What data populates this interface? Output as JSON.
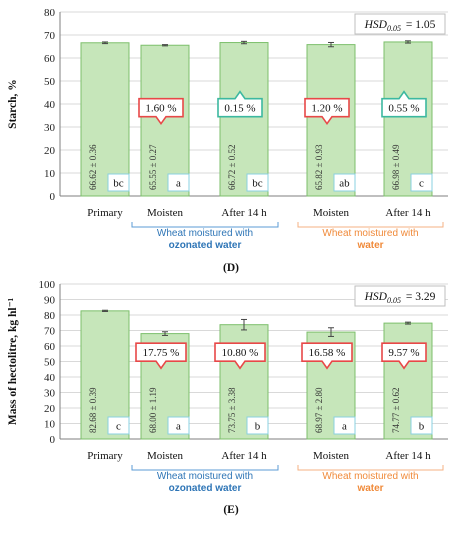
{
  "colors": {
    "bar_fill": "#c6e6ba",
    "bar_stroke": "#7cbf6b",
    "grid": "#d9d9d9",
    "ozonated_bracket": "#5b9bd5",
    "water_bracket": "#f4b183",
    "ozonated_text": "#2e75b6",
    "water_text": "#f08a3a",
    "callout_red": "#e84848",
    "callout_teal": "#3cb8a0",
    "sig_box_border": "#8ad0e0"
  },
  "groups": {
    "ozonated_line1": "Wheat moistured with",
    "ozonated_line2": "ozonated water",
    "water_line1": "Wheat moistured with",
    "water_line2": "water"
  },
  "chart_data": [
    {
      "type": "bar",
      "panel_label": "(D)",
      "ylabel": "Starch, %",
      "ylim": [
        0,
        80
      ],
      "yticks": [
        0,
        10,
        20,
        30,
        40,
        50,
        60,
        70,
        80
      ],
      "grid": true,
      "hsd_label": "HSD",
      "hsd_sub": "0.05",
      "hsd_value": "= 1.05",
      "categories": [
        "Primary",
        "Moisten",
        "After 14 h",
        "Moisten",
        "After 14 h"
      ],
      "values": [
        66.62,
        65.55,
        66.72,
        65.82,
        66.98
      ],
      "errors": [
        0.36,
        0.27,
        0.52,
        0.93,
        0.49
      ],
      "value_labels": [
        "66.62 ± 0.36",
        "65.55 ± 0.27",
        "66.72 ± 0.52",
        "65.82 ± 0.93",
        "66.98 ± 0.49"
      ],
      "significance": [
        "bc",
        "a",
        "bc",
        "ab",
        "c"
      ],
      "changes": [
        {
          "bar": 1,
          "text": "1.60 %",
          "direction": "down",
          "color": "red"
        },
        {
          "bar": 2,
          "text": "0.15 %",
          "direction": "up",
          "color": "teal"
        },
        {
          "bar": 3,
          "text": "1.20 %",
          "direction": "down",
          "color": "red"
        },
        {
          "bar": 4,
          "text": "0.55 %",
          "direction": "up",
          "color": "teal"
        }
      ]
    },
    {
      "type": "bar",
      "panel_label": "(E)",
      "ylabel": "Mass of hectolitre, kg hl⁻¹",
      "ylim": [
        0,
        100
      ],
      "yticks": [
        0,
        10,
        20,
        30,
        40,
        50,
        60,
        70,
        80,
        90,
        100
      ],
      "grid": true,
      "hsd_label": "HSD",
      "hsd_sub": "0.05",
      "hsd_value": "= 3.29",
      "categories": [
        "Primary",
        "Moisten",
        "After 14 h",
        "Moisten",
        "After 14 h"
      ],
      "values": [
        82.68,
        68.0,
        73.75,
        68.97,
        74.77
      ],
      "errors": [
        0.39,
        1.19,
        3.38,
        2.8,
        0.62
      ],
      "value_labels": [
        "82.68 ± 0.39",
        "68.00 ± 1.19",
        "73.75 ± 3.38",
        "68.97 ± 2.80",
        "74.77 ± 0.62"
      ],
      "significance": [
        "c",
        "a",
        "b",
        "a",
        "b"
      ],
      "changes": [
        {
          "bar": 1,
          "text": "17.75 %",
          "direction": "down",
          "color": "red"
        },
        {
          "bar": 2,
          "text": "10.80 %",
          "direction": "down",
          "color": "red"
        },
        {
          "bar": 3,
          "text": "16.58 %",
          "direction": "down",
          "color": "red"
        },
        {
          "bar": 4,
          "text": "9.57 %",
          "direction": "down",
          "color": "red"
        }
      ]
    }
  ]
}
